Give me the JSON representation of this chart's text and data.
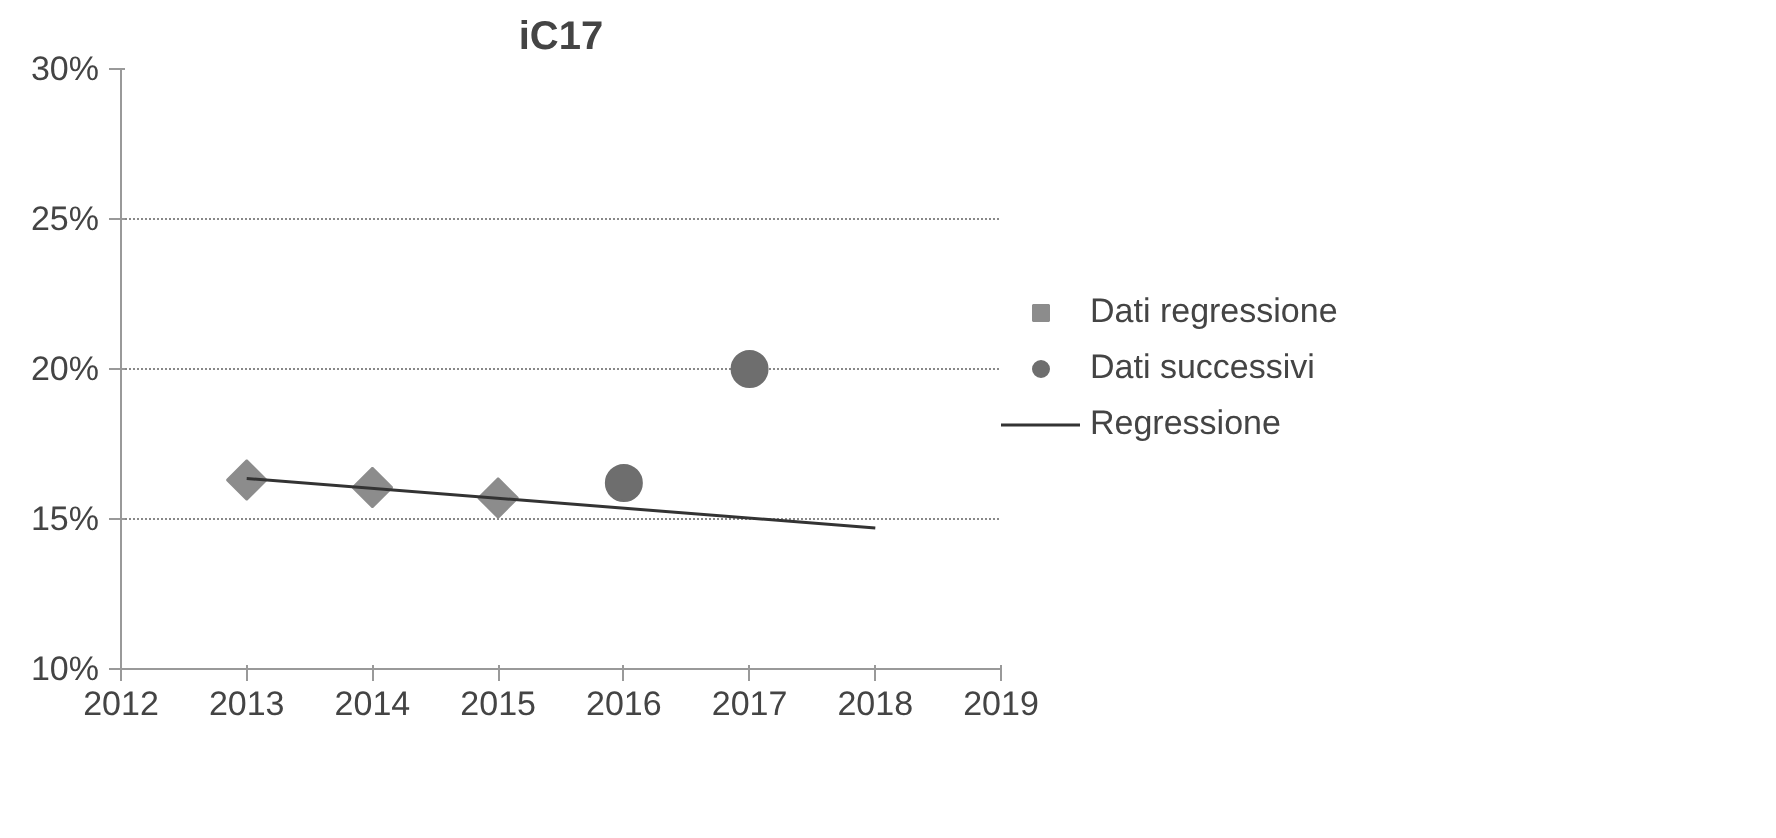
{
  "chart_data": {
    "type": "scatter",
    "title": "iC17",
    "xlim": [
      2012,
      2019
    ],
    "xticks": [
      2012,
      2013,
      2014,
      2015,
      2016,
      2017,
      2018,
      2019
    ],
    "ylim": [
      10,
      30
    ],
    "yticks": [
      {
        "value": 10,
        "label": "10%"
      },
      {
        "value": 15,
        "label": "15%"
      },
      {
        "value": 20,
        "label": "20%"
      },
      {
        "value": 25,
        "label": "25%"
      },
      {
        "value": 30,
        "label": "30%"
      }
    ],
    "grid": "y",
    "legend": "right",
    "series": [
      {
        "name": "Dati regressione",
        "color": "#8c8c8c",
        "marker": "diamond",
        "x": [
          2013,
          2014,
          2015
        ],
        "values": [
          16.3,
          16.05,
          15.7
        ]
      },
      {
        "name": "Dati successivi",
        "color": "#6e6e6e",
        "marker": "circle",
        "x": [
          2016,
          2017
        ],
        "values": [
          16.2,
          20.0
        ]
      },
      {
        "name": "Regressione",
        "type": "line",
        "color": "#333333",
        "marker": "none",
        "x": [
          2013,
          2018
        ],
        "values": [
          16.35,
          14.7
        ]
      }
    ]
  }
}
